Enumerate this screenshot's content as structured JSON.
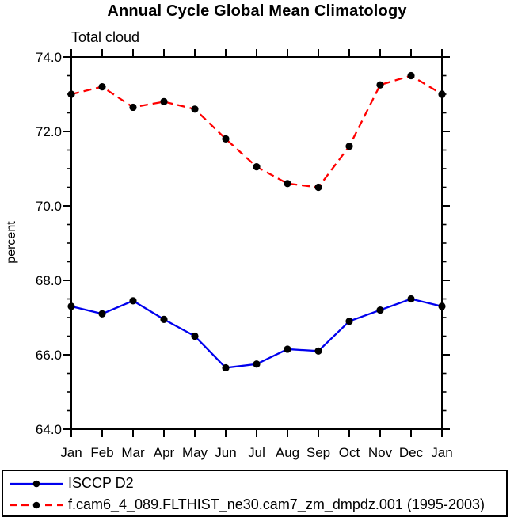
{
  "page": {
    "background": "#ffffff",
    "text_color": "#000000"
  },
  "chart_data": {
    "type": "line",
    "title": "Annual Cycle Global Mean Climatology",
    "subtitle": "Total cloud",
    "ylabel": "percent",
    "xlabel": "",
    "x_categories": [
      "Jan",
      "Feb",
      "Mar",
      "Apr",
      "May",
      "Jun",
      "Jul",
      "Aug",
      "Sep",
      "Oct",
      "Nov",
      "Dec",
      "Jan"
    ],
    "ylim": [
      64.0,
      74.0
    ],
    "ytick_major": [
      64.0,
      66.0,
      68.0,
      70.0,
      72.0,
      74.0
    ],
    "ytick_major_labels": [
      "64.0",
      "66.0",
      "68.0",
      "70.0",
      "72.0",
      "74.0"
    ],
    "ytick_minor_step": 0.5,
    "grid": false,
    "legend_position": "bottom",
    "axis_color": "#000000",
    "marker": "circle",
    "marker_color": "#000000",
    "series": [
      {
        "name": "ISCCP D2",
        "color": "#0000ee",
        "line_style": "solid",
        "values": [
          67.3,
          67.1,
          67.45,
          66.95,
          66.5,
          65.65,
          65.75,
          66.15,
          66.1,
          66.9,
          67.2,
          67.5,
          67.3
        ]
      },
      {
        "name": "f.cam6_4_089.FLTHIST_ne30.cam7_zm_dmpdz.001 (1995-2003)",
        "color": "#ff0000",
        "line_style": "dashed",
        "values": [
          73.0,
          73.2,
          72.65,
          72.8,
          72.6,
          71.8,
          71.05,
          70.6,
          70.5,
          71.6,
          73.25,
          73.5,
          73.0
        ]
      }
    ]
  }
}
